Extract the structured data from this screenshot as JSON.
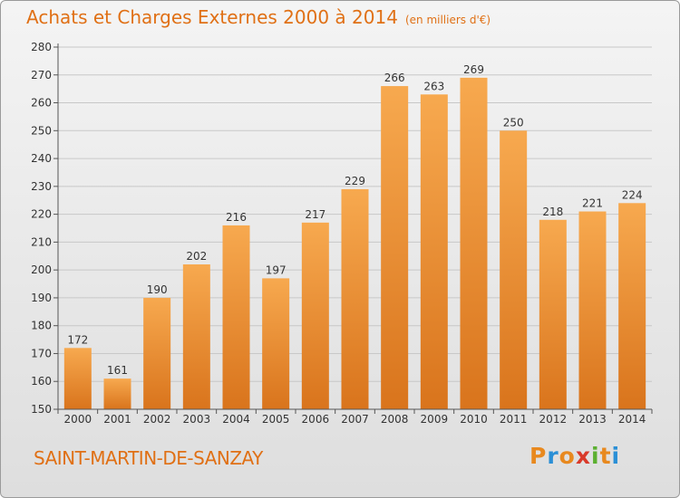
{
  "title": "Achats et Charges Externes 2000 à 2014",
  "subtitle": "(en milliers d'€)",
  "commune": "SAINT-MARTIN-DE-SANZAY",
  "logo": {
    "letters": [
      "P",
      "r",
      "o",
      "x",
      "i",
      "t",
      "i"
    ],
    "colors": [
      "#e8891f",
      "#2a8fd6",
      "#e8891f",
      "#d93a2a",
      "#5bb030",
      "#e8891f",
      "#2a8fd6"
    ]
  },
  "colors": {
    "bar_top": "#f7a94f",
    "bar_bottom": "#d9741c",
    "title": "#e07015"
  },
  "chart_data": {
    "type": "bar",
    "title": "Achats et Charges Externes 2000 à 2014",
    "subtitle": "(en milliers d'€)",
    "categories": [
      "2000",
      "2001",
      "2002",
      "2003",
      "2004",
      "2005",
      "2006",
      "2007",
      "2008",
      "2009",
      "2010",
      "2011",
      "2012",
      "2013",
      "2014"
    ],
    "values": [
      172,
      161,
      190,
      202,
      216,
      197,
      217,
      229,
      266,
      263,
      269,
      250,
      218,
      221,
      224
    ],
    "ylim": [
      150,
      280
    ],
    "yticks": [
      150,
      160,
      170,
      180,
      190,
      200,
      210,
      220,
      230,
      240,
      250,
      260,
      270,
      280
    ],
    "grid": true,
    "xlabel": "",
    "ylabel": ""
  }
}
